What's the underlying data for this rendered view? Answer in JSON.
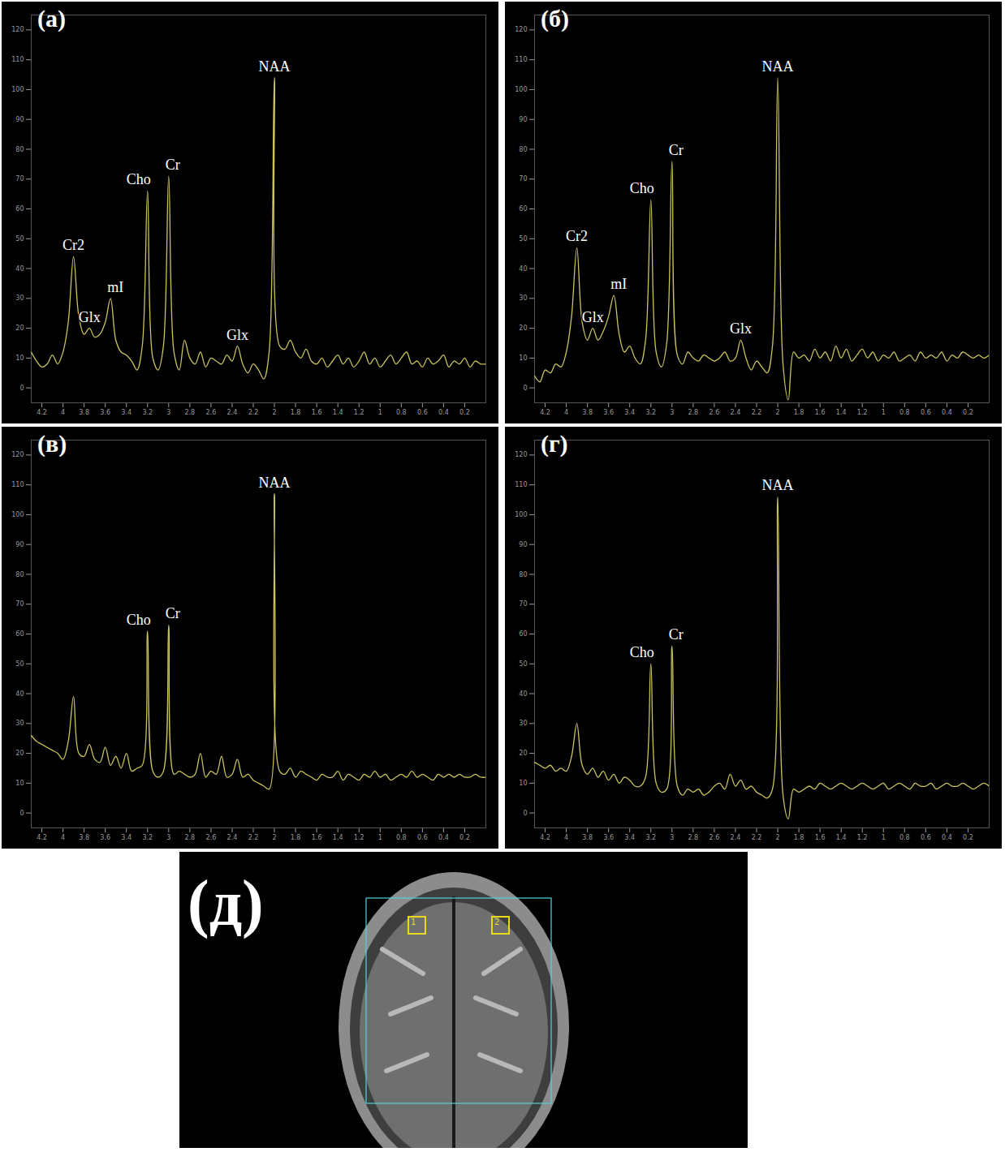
{
  "chart_data": [
    {
      "type": "line",
      "title": "(а)",
      "color": "#c9c35c",
      "x": [
        4.3,
        4.25,
        4.2,
        4.15,
        4.1,
        4.05,
        4,
        3.95,
        3.9,
        3.85,
        3.8,
        3.75,
        3.7,
        3.65,
        3.6,
        3.55,
        3.5,
        3.45,
        3.4,
        3.35,
        3.3,
        3.25,
        3.2,
        3.15,
        3.1,
        3.05,
        3,
        2.95,
        2.9,
        2.85,
        2.8,
        2.75,
        2.7,
        2.65,
        2.6,
        2.55,
        2.5,
        2.45,
        2.4,
        2.35,
        2.3,
        2.25,
        2.2,
        2.15,
        2.1,
        2.05,
        2,
        1.95,
        1.9,
        1.85,
        1.8,
        1.75,
        1.7,
        1.65,
        1.6,
        1.55,
        1.5,
        1.45,
        1.4,
        1.35,
        1.3,
        1.25,
        1.2,
        1.15,
        1.1,
        1.05,
        1,
        0.95,
        0.9,
        0.85,
        0.8,
        0.75,
        0.7,
        0.65,
        0.6,
        0.55,
        0.5,
        0.45,
        0.4,
        0.35,
        0.3,
        0.25,
        0.2,
        0.15,
        0.1,
        0.05,
        0
      ],
      "values": [
        12,
        9,
        7,
        8,
        11,
        8,
        12,
        22,
        44,
        24,
        18,
        20,
        17,
        18,
        22,
        30,
        16,
        12,
        11,
        9,
        6,
        14,
        66,
        10,
        6,
        14,
        71,
        12,
        6,
        16,
        10,
        8,
        12,
        7,
        10,
        9,
        8,
        11,
        9,
        14,
        8,
        5,
        8,
        6,
        3,
        12,
        104,
        14,
        13,
        16,
        12,
        10,
        13,
        9,
        8,
        10,
        7,
        9,
        11,
        8,
        10,
        7,
        9,
        12,
        8,
        10,
        7,
        9,
        11,
        8,
        10,
        12,
        8,
        9,
        7,
        10,
        8,
        9,
        11,
        7,
        9,
        8,
        10,
        7,
        9,
        8,
        8
      ],
      "peaks": [
        {
          "label": "Cr2",
          "x": 3.9
        },
        {
          "label": "Glx",
          "x": 3.75
        },
        {
          "label": "mI",
          "x": 3.55
        },
        {
          "label": "Cho",
          "x": 3.2
        },
        {
          "label": "Cr",
          "x": 3
        },
        {
          "label": "Glx",
          "x": 2.35
        },
        {
          "label": "NAA",
          "x": 2
        }
      ],
      "xlim": [
        4.3,
        0
      ],
      "xticks": [
        4.2,
        4,
        3.8,
        3.6,
        3.4,
        3.2,
        3,
        2.8,
        2.6,
        2.4,
        2.2,
        2,
        1.8,
        1.6,
        1.4,
        1.2,
        1,
        0.8,
        0.6,
        0.4,
        0.2
      ],
      "ylim": [
        -5,
        125
      ],
      "yticks": [
        0,
        10,
        20,
        30,
        40,
        50,
        60,
        70,
        80,
        90,
        100,
        110,
        120
      ]
    },
    {
      "type": "line",
      "title": "(б)",
      "color": "#c9c35c",
      "x": [
        4.3,
        4.25,
        4.2,
        4.15,
        4.1,
        4.05,
        4,
        3.95,
        3.9,
        3.85,
        3.8,
        3.75,
        3.7,
        3.65,
        3.6,
        3.55,
        3.5,
        3.45,
        3.4,
        3.35,
        3.3,
        3.25,
        3.2,
        3.15,
        3.1,
        3.05,
        3,
        2.95,
        2.9,
        2.85,
        2.8,
        2.75,
        2.7,
        2.65,
        2.6,
        2.55,
        2.5,
        2.45,
        2.4,
        2.35,
        2.3,
        2.25,
        2.2,
        2.15,
        2.1,
        2.05,
        2,
        1.95,
        1.9,
        1.85,
        1.8,
        1.75,
        1.7,
        1.65,
        1.6,
        1.55,
        1.5,
        1.45,
        1.4,
        1.35,
        1.3,
        1.25,
        1.2,
        1.15,
        1.1,
        1.05,
        1,
        0.95,
        0.9,
        0.85,
        0.8,
        0.75,
        0.7,
        0.65,
        0.6,
        0.55,
        0.5,
        0.45,
        0.4,
        0.35,
        0.3,
        0.25,
        0.2,
        0.15,
        0.1,
        0.05,
        0
      ],
      "values": [
        4,
        2,
        6,
        5,
        8,
        7,
        12,
        24,
        47,
        22,
        16,
        20,
        16,
        19,
        24,
        31,
        18,
        12,
        14,
        10,
        8,
        16,
        63,
        12,
        7,
        15,
        76,
        11,
        8,
        12,
        10,
        9,
        11,
        10,
        9,
        10,
        12,
        9,
        10,
        16,
        10,
        6,
        9,
        7,
        5,
        14,
        104,
        8,
        -4,
        12,
        10,
        11,
        9,
        13,
        10,
        12,
        9,
        14,
        10,
        13,
        9,
        11,
        13,
        10,
        12,
        9,
        11,
        10,
        12,
        9,
        10,
        11,
        9,
        12,
        10,
        11,
        10,
        12,
        9,
        11,
        10,
        12,
        11,
        10,
        11,
        10,
        11
      ],
      "peaks": [
        {
          "label": "Cr2",
          "x": 3.9
        },
        {
          "label": "Glx",
          "x": 3.75
        },
        {
          "label": "mI",
          "x": 3.55
        },
        {
          "label": "Cho",
          "x": 3.2
        },
        {
          "label": "Cr",
          "x": 3
        },
        {
          "label": "Glx",
          "x": 2.35
        },
        {
          "label": "NAA",
          "x": 2
        }
      ],
      "xlim": [
        4.3,
        0
      ],
      "xticks": [
        4.2,
        4,
        3.8,
        3.6,
        3.4,
        3.2,
        3,
        2.8,
        2.6,
        2.4,
        2.2,
        2,
        1.8,
        1.6,
        1.4,
        1.2,
        1,
        0.8,
        0.6,
        0.4,
        0.2
      ],
      "ylim": [
        -5,
        125
      ],
      "yticks": [
        0,
        10,
        20,
        30,
        40,
        50,
        60,
        70,
        80,
        90,
        100,
        110,
        120
      ]
    },
    {
      "type": "line",
      "title": "(в)",
      "color": "#c9c35c",
      "x": [
        4.3,
        4.25,
        4.2,
        4.15,
        4.1,
        4.05,
        4,
        3.95,
        3.9,
        3.85,
        3.8,
        3.75,
        3.7,
        3.65,
        3.6,
        3.55,
        3.5,
        3.45,
        3.4,
        3.35,
        3.3,
        3.25,
        3.2,
        3.15,
        3.1,
        3.05,
        3,
        2.95,
        2.9,
        2.85,
        2.8,
        2.75,
        2.7,
        2.65,
        2.6,
        2.55,
        2.5,
        2.45,
        2.4,
        2.35,
        2.3,
        2.25,
        2.2,
        2.15,
        2.1,
        2.05,
        2,
        1.95,
        1.9,
        1.85,
        1.8,
        1.75,
        1.7,
        1.65,
        1.6,
        1.55,
        1.5,
        1.45,
        1.4,
        1.35,
        1.3,
        1.25,
        1.2,
        1.15,
        1.1,
        1.05,
        1,
        0.95,
        0.9,
        0.85,
        0.8,
        0.75,
        0.7,
        0.65,
        0.6,
        0.55,
        0.5,
        0.45,
        0.4,
        0.35,
        0.3,
        0.25,
        0.2,
        0.15,
        0.1,
        0.05,
        0
      ],
      "values": [
        26,
        24,
        23,
        22,
        21,
        20,
        18,
        24,
        39,
        20,
        19,
        23,
        18,
        17,
        22,
        16,
        19,
        15,
        20,
        14,
        15,
        16,
        61,
        14,
        12,
        14,
        63,
        13,
        14,
        13,
        12,
        13,
        20,
        12,
        14,
        13,
        19,
        12,
        13,
        18,
        12,
        13,
        11,
        10,
        9,
        8,
        107,
        14,
        13,
        15,
        12,
        14,
        13,
        12,
        11,
        13,
        12,
        12,
        14,
        11,
        13,
        12,
        11,
        13,
        12,
        14,
        12,
        13,
        11,
        12,
        13,
        12,
        14,
        12,
        13,
        12,
        11,
        13,
        12,
        13,
        12,
        13,
        12,
        12,
        13,
        12,
        12
      ],
      "peaks": [
        {
          "label": "Cho",
          "x": 3.2
        },
        {
          "label": "Cr",
          "x": 3
        },
        {
          "label": "NAA",
          "x": 2
        }
      ],
      "xlim": [
        4.3,
        0
      ],
      "xticks": [
        4.2,
        4,
        3.8,
        3.6,
        3.4,
        3.2,
        3,
        2.8,
        2.6,
        2.4,
        2.2,
        2,
        1.8,
        1.6,
        1.4,
        1.2,
        1,
        0.8,
        0.6,
        0.4,
        0.2
      ],
      "ylim": [
        -5,
        125
      ],
      "yticks": [
        0,
        10,
        20,
        30,
        40,
        50,
        60,
        70,
        80,
        90,
        100,
        110,
        120
      ]
    },
    {
      "type": "line",
      "title": "(г)",
      "color": "#c9c35c",
      "x": [
        4.3,
        4.25,
        4.2,
        4.15,
        4.1,
        4.05,
        4,
        3.95,
        3.9,
        3.85,
        3.8,
        3.75,
        3.7,
        3.65,
        3.6,
        3.55,
        3.5,
        3.45,
        3.4,
        3.35,
        3.3,
        3.25,
        3.2,
        3.15,
        3.1,
        3.05,
        3,
        2.95,
        2.9,
        2.85,
        2.8,
        2.75,
        2.7,
        2.65,
        2.6,
        2.55,
        2.5,
        2.45,
        2.4,
        2.35,
        2.3,
        2.25,
        2.2,
        2.15,
        2.1,
        2.05,
        2,
        1.95,
        1.9,
        1.85,
        1.8,
        1.75,
        1.7,
        1.65,
        1.6,
        1.55,
        1.5,
        1.45,
        1.4,
        1.35,
        1.3,
        1.25,
        1.2,
        1.15,
        1.1,
        1.05,
        1,
        0.95,
        0.9,
        0.85,
        0.8,
        0.75,
        0.7,
        0.65,
        0.6,
        0.55,
        0.5,
        0.45,
        0.4,
        0.35,
        0.3,
        0.25,
        0.2,
        0.15,
        0.1,
        0.05,
        0
      ],
      "values": [
        17,
        16,
        15,
        16,
        14,
        15,
        14,
        19,
        30,
        16,
        13,
        15,
        12,
        14,
        11,
        13,
        10,
        12,
        11,
        9,
        9,
        12,
        50,
        10,
        7,
        8,
        56,
        9,
        6,
        8,
        7,
        8,
        6,
        7,
        9,
        10,
        8,
        13,
        9,
        11,
        8,
        9,
        7,
        6,
        5,
        8,
        106,
        6,
        -2,
        8,
        7,
        8,
        9,
        8,
        10,
        9,
        8,
        9,
        10,
        9,
        8,
        9,
        10,
        9,
        8,
        9,
        10,
        8,
        9,
        10,
        9,
        8,
        10,
        9,
        9,
        10,
        8,
        9,
        10,
        9,
        9,
        10,
        9,
        8,
        9,
        10,
        9
      ],
      "peaks": [
        {
          "label": "Cho",
          "x": 3.2
        },
        {
          "label": "Cr",
          "x": 3
        },
        {
          "label": "NAA",
          "x": 2
        }
      ],
      "xlim": [
        4.3,
        0
      ],
      "xticks": [
        4.2,
        4,
        3.8,
        3.6,
        3.4,
        3.2,
        3,
        2.8,
        2.6,
        2.4,
        2.2,
        2,
        1.8,
        1.6,
        1.4,
        1.2,
        1,
        0.8,
        0.6,
        0.4,
        0.2
      ],
      "ylim": [
        -5,
        125
      ],
      "yticks": [
        0,
        10,
        20,
        30,
        40,
        50,
        60,
        70,
        80,
        90,
        100,
        110,
        120
      ]
    }
  ],
  "image": {
    "title": "(д)",
    "voxels": [
      "1",
      "2"
    ]
  }
}
